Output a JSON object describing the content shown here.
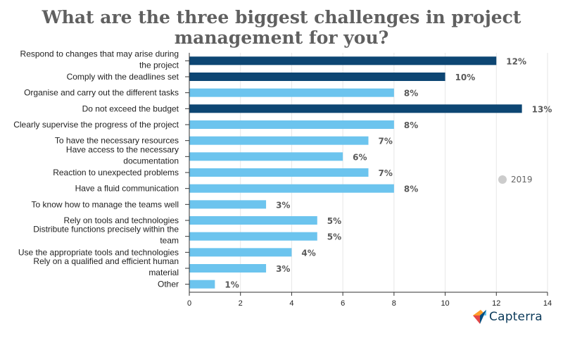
{
  "chart_data": {
    "type": "bar",
    "orientation": "horizontal",
    "title": "What are the three biggest challenges in project management for you?",
    "categories": [
      "Respond to changes that may arise during the project",
      "Comply with the deadlines set",
      "Organise and carry out the different tasks",
      "Do not exceed the budget",
      "Clearly supervise the progress of the project",
      "To have the necessary resources",
      "Have access to the necessary documentation",
      "Reaction to unexpected problems",
      "Have a fluid communication",
      "To know how to manage the teams well",
      "Rely on tools and technologies",
      "Distribute functions precisely within the team",
      "Use the appropriate tools and technologies",
      "Rely on a qualified and efficient human material",
      "Other"
    ],
    "category_lines": [
      [
        "Respond to changes that may arise during",
        "the project"
      ],
      [
        "Comply with the deadlines set"
      ],
      [
        "Organise and carry out the different tasks"
      ],
      [
        "Do not exceed the budget"
      ],
      [
        "Clearly supervise the progress of the project"
      ],
      [
        "To have the necessary resources"
      ],
      [
        "Have access to the necessary",
        "documentation"
      ],
      [
        "Reaction to unexpected problems"
      ],
      [
        "Have a fluid communication"
      ],
      [
        "To know how to manage the teams well"
      ],
      [
        "Rely on tools and technologies"
      ],
      [
        "Distribute functions precisely within the",
        "team"
      ],
      [
        "Use the appropriate tools and technologies"
      ],
      [
        "Rely on a qualified and efficient human",
        "material"
      ],
      [
        "Other"
      ]
    ],
    "series": [
      {
        "name": "2019",
        "values": [
          12,
          10,
          8,
          13,
          8,
          7,
          6,
          7,
          8,
          3,
          5,
          5,
          4,
          3,
          1
        ],
        "labels": [
          "12%",
          "10%",
          "8%",
          "13%",
          "8%",
          "7%",
          "6%",
          "7%",
          "8%",
          "3%",
          "5%",
          "5%",
          "4%",
          "3%",
          "1%"
        ]
      }
    ],
    "highlighted": [
      true,
      true,
      false,
      true,
      false,
      false,
      false,
      false,
      false,
      false,
      false,
      false,
      false,
      false,
      false
    ],
    "colors": {
      "highlight": "#0d4673",
      "default": "#6cc4ee",
      "grid": "#e6e6e6",
      "axis": "#333333",
      "legend": "#cccccc"
    },
    "xlim": [
      0,
      14
    ],
    "xticks": [
      0,
      2,
      4,
      6,
      8,
      10,
      12,
      14
    ],
    "xlabel": "",
    "ylabel": "",
    "grid": true,
    "legend": {
      "label": "2019",
      "position": "right"
    }
  },
  "brand": {
    "name": "Capterra",
    "logo_icon": "capterra-logo-icon"
  }
}
